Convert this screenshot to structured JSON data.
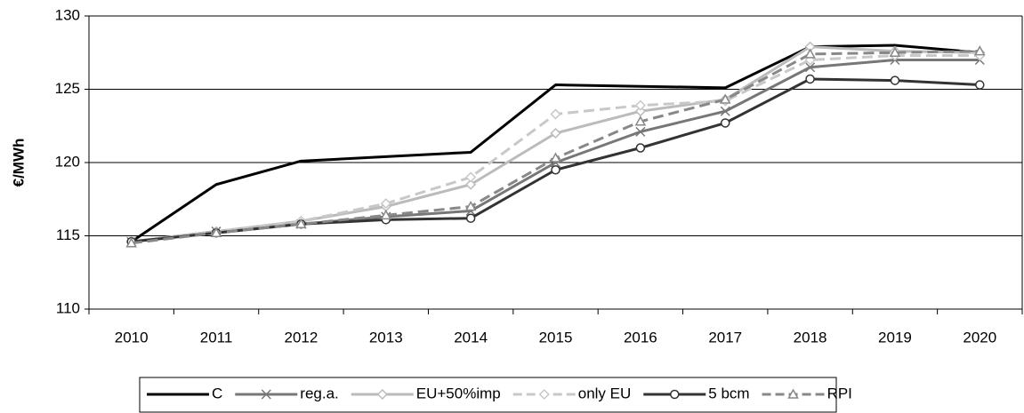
{
  "chart_data": {
    "type": "line",
    "y_label": "€/MWh",
    "categories": [
      "2010",
      "2011",
      "2012",
      "2013",
      "2014",
      "2015",
      "2016",
      "2017",
      "2018",
      "2019",
      "2020"
    ],
    "ylim": [
      110,
      130
    ],
    "yticks": [
      110,
      115,
      120,
      125,
      130
    ],
    "grid": true,
    "legend": "bottom",
    "series": [
      {
        "name": "C",
        "color": "#000000",
        "marker": "none",
        "dash": false,
        "values": [
          114.6,
          118.5,
          120.1,
          120.4,
          120.7,
          125.3,
          125.2,
          125.1,
          127.9,
          128.0,
          127.5
        ]
      },
      {
        "name": "reg.a.",
        "color": "#777777",
        "marker": "x",
        "dash": false,
        "values": [
          114.6,
          115.3,
          115.8,
          116.3,
          116.7,
          120.0,
          122.1,
          123.5,
          126.5,
          127.0,
          127.0
        ]
      },
      {
        "name": "EU+50%imp",
        "color": "#bbbbbb",
        "marker": "diamond",
        "dash": false,
        "values": [
          114.6,
          115.3,
          116.0,
          117.0,
          118.5,
          122.0,
          123.5,
          124.3,
          127.9,
          127.6,
          127.5
        ]
      },
      {
        "name": "only EU",
        "color": "#c8c8c8",
        "marker": "diamond",
        "dash": true,
        "values": [
          114.6,
          115.3,
          116.0,
          117.2,
          119.0,
          123.3,
          123.9,
          124.2,
          127.0,
          127.3,
          127.3
        ]
      },
      {
        "name": "5 bcm",
        "color": "#333333",
        "marker": "circle",
        "dash": false,
        "values": [
          114.6,
          115.2,
          115.8,
          116.1,
          116.2,
          119.5,
          121.0,
          122.7,
          125.7,
          125.6,
          125.3
        ]
      },
      {
        "name": "RPI",
        "color": "#888888",
        "marker": "triangle",
        "dash": true,
        "values": [
          114.5,
          115.2,
          115.8,
          116.4,
          117.0,
          120.3,
          122.8,
          124.3,
          127.4,
          127.5,
          127.6
        ]
      }
    ]
  }
}
